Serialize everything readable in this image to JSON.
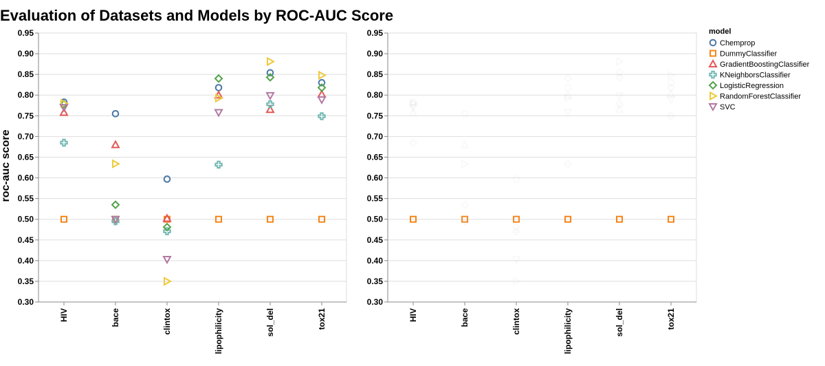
{
  "chart_data": {
    "type": "scatter",
    "title": "Evaluation of Datasets and Models by ROC-AUC Score",
    "ylabel": "roc-auc score",
    "xlabel": "",
    "ylim": [
      0.3,
      0.95
    ],
    "yticks": [
      "0.95",
      "0.90",
      "0.85",
      "0.80",
      "0.75",
      "0.70",
      "0.65",
      "0.60",
      "0.55",
      "0.50",
      "0.45",
      "0.40",
      "0.35",
      "0.30"
    ],
    "categories": [
      "HIV",
      "bace",
      "clintox",
      "lipophilicity",
      "sol_del",
      "tox21"
    ],
    "grid": true,
    "legend": {
      "title": "model",
      "position": "right"
    },
    "series": [
      {
        "name": "Chemprop",
        "shape": "circle",
        "color": "#4c78a8",
        "values": [
          0.783,
          0.755,
          0.597,
          0.818,
          0.854,
          0.83
        ]
      },
      {
        "name": "DummyClassifier",
        "shape": "square",
        "color": "#f58518",
        "values": [
          0.5,
          0.5,
          0.5,
          0.5,
          0.5,
          0.5
        ]
      },
      {
        "name": "GradientBoostingClassifier",
        "shape": "triangle-up",
        "color": "#e45756",
        "values": [
          0.758,
          0.68,
          0.502,
          0.8,
          0.765,
          0.802
        ]
      },
      {
        "name": "KNeighborsClassifier",
        "shape": "cross",
        "color": "#72b7b2",
        "values": [
          0.685,
          0.495,
          0.471,
          0.632,
          0.778,
          0.749
        ]
      },
      {
        "name": "LogisticRegression",
        "shape": "diamond",
        "color": "#54a24b",
        "values": [
          0.778,
          0.535,
          0.481,
          0.84,
          0.843,
          0.818
        ]
      },
      {
        "name": "RandomForestClassifier",
        "shape": "triangle-right",
        "color": "#eeca3b",
        "values": [
          0.78,
          0.634,
          0.35,
          0.793,
          0.881,
          0.848
        ]
      },
      {
        "name": "SVC",
        "shape": "triangle-down",
        "color": "#b279a2",
        "values": [
          0.77,
          0.5,
          0.403,
          0.758,
          0.799,
          0.789
        ]
      }
    ],
    "panels": [
      {
        "highlight": "all"
      },
      {
        "highlight": "DummyClassifier"
      }
    ]
  }
}
